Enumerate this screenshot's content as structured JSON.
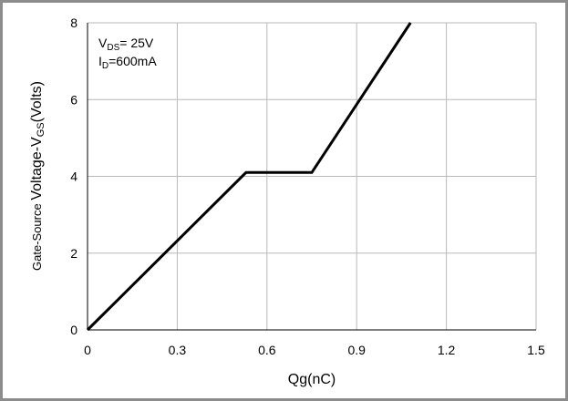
{
  "chart_data": {
    "type": "line",
    "xlabel": "Qg(nC)",
    "ylabel": {
      "prefix": "Gate-Source ",
      "main": "Voltage-V",
      "sub": "GS",
      "suffix": "(Volts)"
    },
    "xlim": [
      0,
      1.5
    ],
    "ylim": [
      0,
      8
    ],
    "x_ticks": [
      "0",
      "0.3",
      "0.6",
      "0.9",
      "1.2",
      "1.5"
    ],
    "y_ticks": [
      "0",
      "2",
      "4",
      "6",
      "8"
    ],
    "grid": true,
    "annotations": [
      {
        "main": "V",
        "sub": "DS",
        "rest": "= 25V"
      },
      {
        "main": "I",
        "sub": "D",
        "rest": "=600mA"
      }
    ],
    "series": [
      {
        "x": [
          0,
          0.53,
          0.75,
          1.08
        ],
        "y": [
          0,
          4.1,
          4.1,
          8.0
        ]
      }
    ]
  },
  "colors": {
    "grid": "#b8b8b8",
    "axis": "#000000",
    "line": "#000000",
    "frame": "#8c8c8c"
  }
}
